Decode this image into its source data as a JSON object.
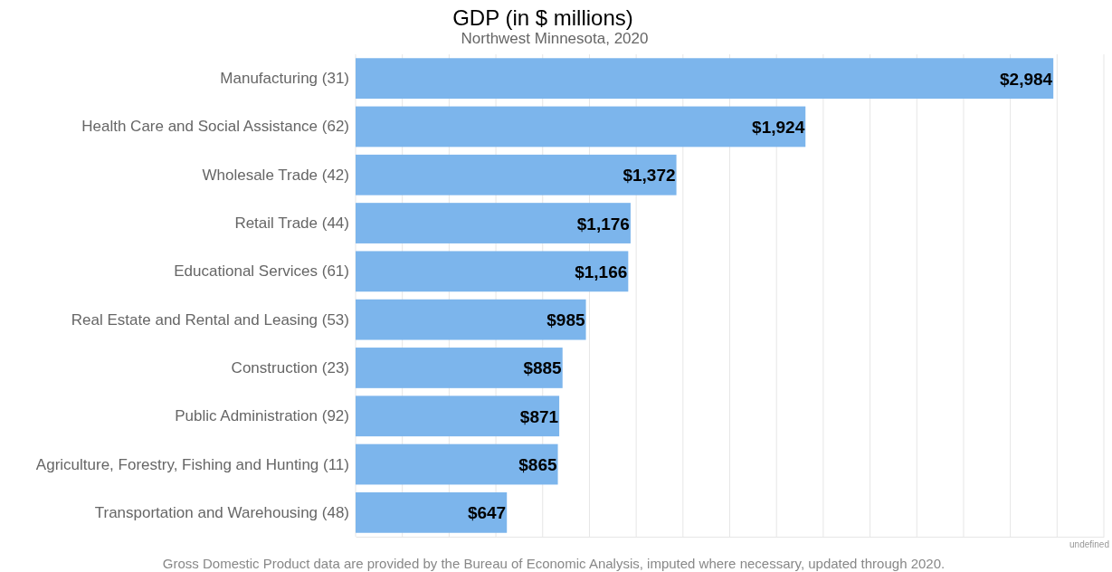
{
  "chart_data": {
    "type": "bar",
    "orientation": "horizontal",
    "title": "GDP (in $ millions)",
    "subtitle": "Northwest Minnesota, 2020",
    "categories": [
      "Manufacturing (31)",
      "Health Care and Social Assistance (62)",
      "Wholesale Trade (42)",
      "Retail Trade (44)",
      "Educational Services (61)",
      "Real Estate and Rental and Leasing (53)",
      "Construction (23)",
      "Public Administration (92)",
      "Agriculture, Forestry, Fishing and Hunting (11)",
      "Transportation and Warehousing (48)"
    ],
    "values": [
      2984,
      1924,
      1372,
      1176,
      1166,
      985,
      885,
      871,
      865,
      647
    ],
    "value_labels": [
      "$2,984",
      "$1,924",
      "$1,372",
      "$1,176",
      "$1,166",
      "$985",
      "$885",
      "$871",
      "$865",
      "$647"
    ],
    "color": "#7cb5ec",
    "xlim": [
      0,
      3200
    ],
    "xticks": [
      {
        "value": 0,
        "label": null
      },
      {
        "value": 200,
        "label": null
      },
      {
        "value": 400,
        "label": null
      },
      {
        "value": 600,
        "label": null
      },
      {
        "value": 800,
        "label": null
      },
      {
        "value": 1000,
        "label": null
      },
      {
        "value": 1200,
        "label": null
      },
      {
        "value": 1400,
        "label": null
      },
      {
        "value": 1600,
        "label": null
      },
      {
        "value": 1800,
        "label": null
      },
      {
        "value": 2000,
        "label": null
      },
      {
        "value": 2200,
        "label": null
      },
      {
        "value": 2400,
        "label": null
      },
      {
        "value": 2600,
        "label": null
      },
      {
        "value": 2800,
        "label": null
      },
      {
        "value": 3000,
        "label": null
      },
      {
        "value": 3200,
        "label": null
      }
    ],
    "tick_labels": "y",
    "grid": "x",
    "annotations": [
      "Gross Domestic Product data are provided by the Bureau of Economic Analysis, imputed where necessary, updated through 2020.",
      "undefined"
    ]
  }
}
